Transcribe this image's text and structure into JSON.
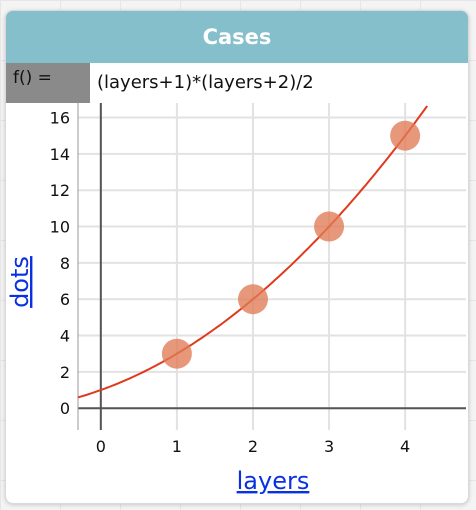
{
  "card": {
    "title": "Cases",
    "formula_label": "f() =",
    "formula": "(layers+1)*(layers+2)/2"
  },
  "colors": {
    "title_bar": "#84bfcb",
    "point": "#e07b55",
    "curve": "#e03a1e",
    "axis_title": "#0a31e0"
  },
  "chart_data": {
    "type": "scatter",
    "xlabel": "layers",
    "ylabel": "dots",
    "xlim": [
      -0.3,
      4.8
    ],
    "ylim": [
      -1.2,
      16.8
    ],
    "x_ticks": [
      0,
      1,
      2,
      3,
      4
    ],
    "y_ticks": [
      0,
      2,
      4,
      6,
      8,
      10,
      12,
      14,
      16
    ],
    "grid": true,
    "points": [
      {
        "x": 1,
        "y": 3
      },
      {
        "x": 2,
        "y": 6
      },
      {
        "x": 3,
        "y": 10
      },
      {
        "x": 4,
        "y": 15
      }
    ],
    "function": "(layers+1)*(layers+2)/2"
  }
}
